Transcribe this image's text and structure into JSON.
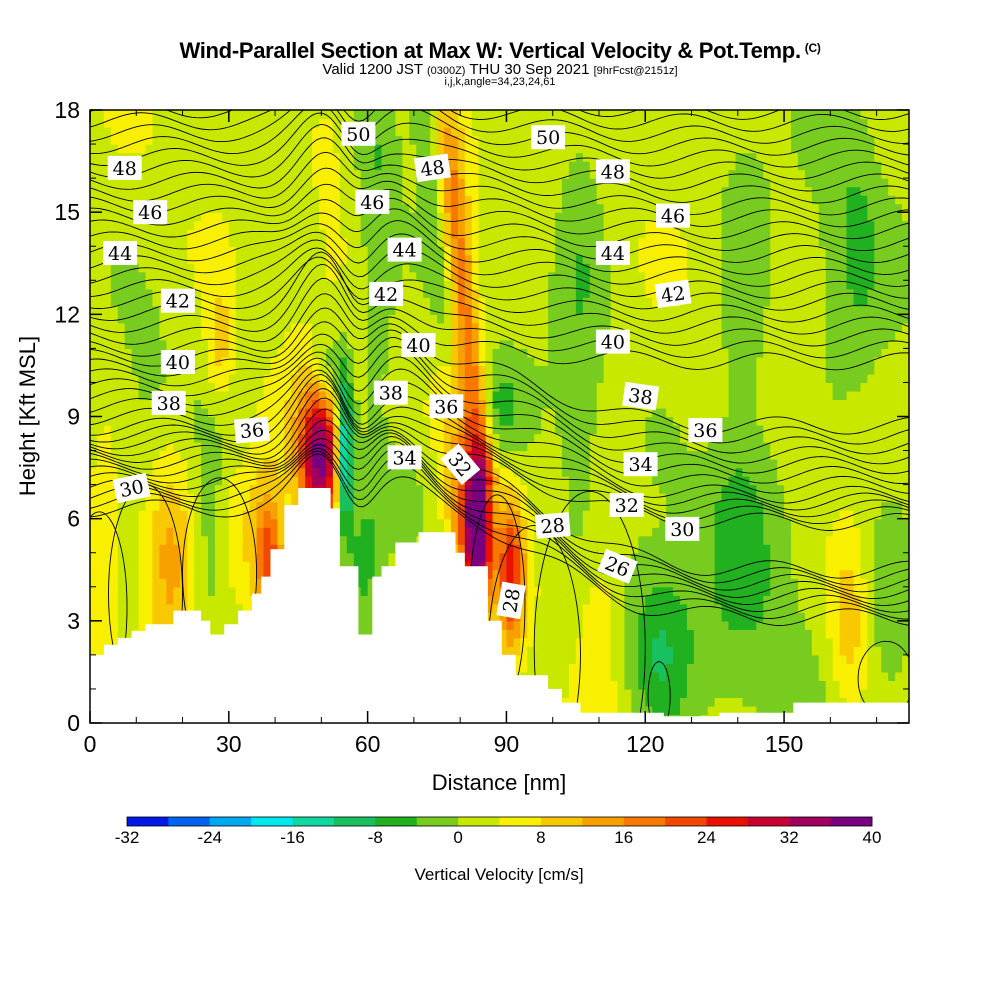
{
  "title": {
    "main": "Wind-Parallel Section at Max W: Vertical Velocity & Pot.Temp.",
    "copyright": "(C)",
    "valid_prefix": "Valid 1200 JST",
    "zulu": "(0300Z)",
    "valid_date": "THU 30 Sep 2021",
    "forecast": "[9hrFcst@2151z]",
    "indices": "i,j,k,angle=34,23,24,61"
  },
  "chart_data": {
    "type": "heatmap",
    "xlabel": "Distance [nm]",
    "ylabel": "Height [Kft MSL]",
    "xlim": [
      0,
      177
    ],
    "ylim": [
      0,
      18
    ],
    "x_ticks": [
      "0",
      "30",
      "60",
      "90",
      "120",
      "150"
    ],
    "y_ticks": [
      "0",
      "3",
      "6",
      "9",
      "12",
      "15",
      "18"
    ],
    "colorbar": {
      "label": "Vertical Velocity [cm/s]",
      "tick_labels": [
        "-32",
        "-24",
        "-16",
        "-8",
        "0",
        "8",
        "16",
        "24",
        "32",
        "40"
      ],
      "levels": [
        -32,
        -28,
        -24,
        -20,
        -16,
        -12,
        -8,
        -4,
        0,
        4,
        8,
        12,
        16,
        20,
        24,
        28,
        32,
        36,
        40
      ],
      "colors": [
        "#0018e8",
        "#0064f0",
        "#00a8f0",
        "#00e8f0",
        "#10d8a0",
        "#18c060",
        "#20b020",
        "#78cc20",
        "#c8e800",
        "#f8f000",
        "#f8c800",
        "#f8a000",
        "#f87800",
        "#f04800",
        "#e81000",
        "#c80030",
        "#a00060",
        "#780080"
      ]
    },
    "terrain": [
      [
        0,
        2.0
      ],
      [
        3,
        2.0
      ],
      [
        3,
        2.3
      ],
      [
        6,
        2.3
      ],
      [
        6,
        2.5
      ],
      [
        9,
        2.5
      ],
      [
        9,
        2.7
      ],
      [
        12,
        2.7
      ],
      [
        12,
        2.9
      ],
      [
        18,
        2.9
      ],
      [
        18,
        3.3
      ],
      [
        24,
        3.3
      ],
      [
        24,
        3.0
      ],
      [
        26,
        3.0
      ],
      [
        26,
        2.6
      ],
      [
        29,
        2.6
      ],
      [
        29,
        2.9
      ],
      [
        32,
        2.9
      ],
      [
        32,
        3.3
      ],
      [
        35,
        3.3
      ],
      [
        35,
        3.8
      ],
      [
        37,
        3.8
      ],
      [
        37,
        4.3
      ],
      [
        39,
        4.3
      ],
      [
        39,
        5.1
      ],
      [
        42,
        5.1
      ],
      [
        42,
        6.4
      ],
      [
        45,
        6.4
      ],
      [
        45,
        6.9
      ],
      [
        52,
        6.9
      ],
      [
        52,
        6.3
      ],
      [
        54,
        6.3
      ],
      [
        54,
        4.6
      ],
      [
        58,
        4.6
      ],
      [
        58,
        2.6
      ],
      [
        61,
        2.6
      ],
      [
        61,
        4.3
      ],
      [
        63,
        4.3
      ],
      [
        63,
        4.6
      ],
      [
        66,
        4.6
      ],
      [
        66,
        5.3
      ],
      [
        71,
        5.3
      ],
      [
        71,
        5.6
      ],
      [
        79,
        5.6
      ],
      [
        79,
        5.0
      ],
      [
        81,
        5.0
      ],
      [
        81,
        4.6
      ],
      [
        86,
        4.6
      ],
      [
        86,
        3.0
      ],
      [
        89,
        3.0
      ],
      [
        89,
        2.0
      ],
      [
        92,
        2.0
      ],
      [
        92,
        1.4
      ],
      [
        99,
        1.4
      ],
      [
        99,
        1.0
      ],
      [
        102,
        1.0
      ],
      [
        102,
        0.6
      ],
      [
        106,
        0.6
      ],
      [
        106,
        0.3
      ],
      [
        124,
        0.3
      ],
      [
        124,
        0.2
      ],
      [
        136,
        0.2
      ],
      [
        136,
        0.3
      ],
      [
        152,
        0.3
      ],
      [
        152,
        0.6
      ],
      [
        177,
        0.6
      ]
    ],
    "theta_contours": {
      "unit": "K",
      "labels": [
        {
          "text": "30",
          "x": 9,
          "y": 6.9,
          "rot": -12
        },
        {
          "text": "36",
          "x": 35,
          "y": 8.6,
          "rot": -5
        },
        {
          "text": "38",
          "x": 17,
          "y": 9.4,
          "rot": 0
        },
        {
          "text": "40",
          "x": 19,
          "y": 10.6,
          "rot": 0
        },
        {
          "text": "42",
          "x": 19,
          "y": 12.4,
          "rot": 0
        },
        {
          "text": "44",
          "x": 6.5,
          "y": 13.8,
          "rot": 0
        },
        {
          "text": "46",
          "x": 13,
          "y": 15.0,
          "rot": 0
        },
        {
          "text": "48",
          "x": 7.5,
          "y": 16.3,
          "rot": 0
        },
        {
          "text": "50",
          "x": 58,
          "y": 17.3,
          "rot": 0
        },
        {
          "text": "48",
          "x": 74,
          "y": 16.3,
          "rot": -8
        },
        {
          "text": "46",
          "x": 61,
          "y": 15.3,
          "rot": 0
        },
        {
          "text": "44",
          "x": 68,
          "y": 13.9,
          "rot": 0
        },
        {
          "text": "42",
          "x": 64,
          "y": 12.6,
          "rot": 0
        },
        {
          "text": "40",
          "x": 71,
          "y": 11.1,
          "rot": 0
        },
        {
          "text": "38",
          "x": 65,
          "y": 9.7,
          "rot": 0
        },
        {
          "text": "36",
          "x": 77,
          "y": 9.3,
          "rot": 0
        },
        {
          "text": "34",
          "x": 68,
          "y": 7.8,
          "rot": 0
        },
        {
          "text": "32",
          "x": 80,
          "y": 7.6,
          "rot": 50
        },
        {
          "text": "28",
          "x": 91,
          "y": 3.6,
          "rot": -80
        },
        {
          "text": "50",
          "x": 99,
          "y": 17.2,
          "rot": 0
        },
        {
          "text": "48",
          "x": 113,
          "y": 16.2,
          "rot": 0
        },
        {
          "text": "46",
          "x": 126,
          "y": 14.9,
          "rot": 0
        },
        {
          "text": "44",
          "x": 113,
          "y": 13.8,
          "rot": 0
        },
        {
          "text": "42",
          "x": 126,
          "y": 12.6,
          "rot": -8
        },
        {
          "text": "40",
          "x": 113,
          "y": 11.2,
          "rot": 0
        },
        {
          "text": "38",
          "x": 119,
          "y": 9.6,
          "rot": 8
        },
        {
          "text": "36",
          "x": 133,
          "y": 8.6,
          "rot": 0
        },
        {
          "text": "34",
          "x": 119,
          "y": 7.6,
          "rot": 0
        },
        {
          "text": "32",
          "x": 116,
          "y": 6.4,
          "rot": 0
        },
        {
          "text": "30",
          "x": 128,
          "y": 5.7,
          "rot": 0
        },
        {
          "text": "28",
          "x": 100,
          "y": 5.8,
          "rot": -5
        },
        {
          "text": "26",
          "x": 114,
          "y": 4.6,
          "rot": 22
        }
      ]
    },
    "w_field": [
      {
        "x": 50,
        "y": 8.0,
        "sx": 3,
        "sy": 1.5,
        "v": 30
      },
      {
        "x": 48,
        "y": 7.5,
        "sx": 4.5,
        "sy": 2.3,
        "v": 8
      },
      {
        "x": 55,
        "y": 7.9,
        "sx": 1.3,
        "sy": 1.6,
        "v": -26
      },
      {
        "x": 51,
        "y": 10.2,
        "sx": 2.5,
        "sy": 1.0,
        "v": -12
      },
      {
        "x": 59,
        "y": 4.7,
        "sx": 3,
        "sy": 1.6,
        "v": -8
      },
      {
        "x": 38,
        "y": 5.2,
        "sx": 2.5,
        "sy": 1.8,
        "v": 12
      },
      {
        "x": 39,
        "y": 4.8,
        "sx": 2,
        "sy": 1.0,
        "v": 12
      },
      {
        "x": 17,
        "y": 5.0,
        "sx": 4,
        "sy": 2.4,
        "v": 11
      },
      {
        "x": 26,
        "y": 5.0,
        "sx": 2.5,
        "sy": 2.0,
        "v": -5
      },
      {
        "x": 32,
        "y": 5.8,
        "sx": 3,
        "sy": 1.5,
        "v": 6
      },
      {
        "x": 84,
        "y": 5.7,
        "sx": 2,
        "sy": 1.6,
        "v": 34
      },
      {
        "x": 82,
        "y": 7.0,
        "sx": 3,
        "sy": 2.5,
        "v": 14
      },
      {
        "x": 91,
        "y": 4.4,
        "sx": 2,
        "sy": 1.6,
        "v": 22
      },
      {
        "x": 80,
        "y": 12.0,
        "sx": 2.5,
        "sy": 4.5,
        "v": 9
      },
      {
        "x": 77,
        "y": 16.5,
        "sx": 2.5,
        "sy": 1.8,
        "v": 8
      },
      {
        "x": 88,
        "y": 9.2,
        "sx": 3.5,
        "sy": 1.0,
        "v": -7
      },
      {
        "x": 76,
        "y": 17.8,
        "sx": 3,
        "sy": 1.5,
        "v": -7
      },
      {
        "x": 67,
        "y": 6.8,
        "sx": 5,
        "sy": 1.2,
        "v": -5
      },
      {
        "x": 123,
        "y": 2.2,
        "sx": 5,
        "sy": 1.8,
        "v": -10
      },
      {
        "x": 143,
        "y": 3.5,
        "sx": 10,
        "sy": 3.0,
        "v": -4
      },
      {
        "x": 110,
        "y": 3.0,
        "sx": 3,
        "sy": 2.0,
        "v": 5
      },
      {
        "x": 164,
        "y": 2.8,
        "sx": 3,
        "sy": 1.8,
        "v": 9
      },
      {
        "x": 173,
        "y": 3.8,
        "sx": 4,
        "sy": 2.5,
        "v": -5
      },
      {
        "x": 165,
        "y": 14.0,
        "sx": 5,
        "sy": 3.0,
        "v": -6
      },
      {
        "x": 106,
        "y": 13.5,
        "sx": 4,
        "sy": 5.0,
        "v": -5
      },
      {
        "x": 141,
        "y": 11.5,
        "sx": 4,
        "sy": 4.0,
        "v": -5
      },
      {
        "x": 13,
        "y": 9.5,
        "sx": 4,
        "sy": 2.0,
        "v": -3
      },
      {
        "x": 62,
        "y": 14.5,
        "sx": 3,
        "sy": 4.0,
        "v": -5
      },
      {
        "x": 28,
        "y": 11.2,
        "sx": 2,
        "sy": 1.2,
        "v": 8
      },
      {
        "x": 52,
        "y": 17.0,
        "sx": 4,
        "sy": 2.0,
        "v": 4
      },
      {
        "x": 3,
        "y": 5.0,
        "sx": 2,
        "sy": 2.5,
        "v": 6
      },
      {
        "x": 140,
        "y": 6.5,
        "sx": 6,
        "sy": 1.5,
        "v": -3
      }
    ]
  }
}
